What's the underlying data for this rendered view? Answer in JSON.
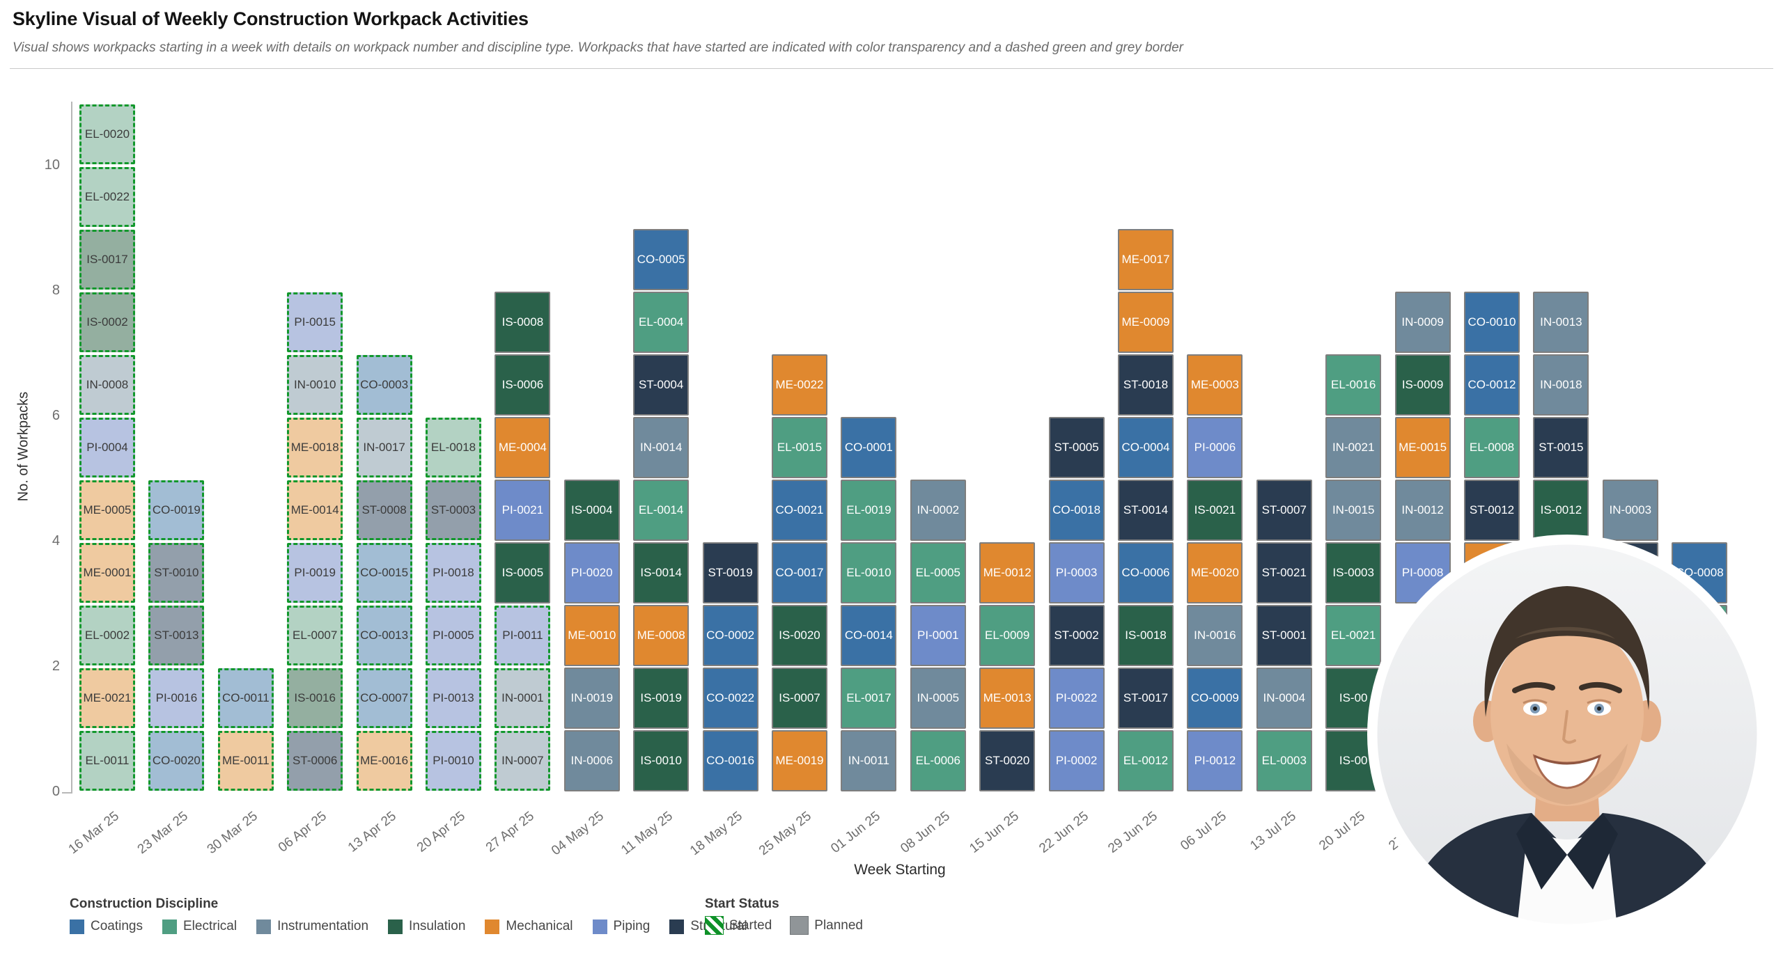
{
  "header": {
    "title": "Skyline Visual of Weekly Construction Workpack Activities",
    "subtitle": "Visual shows workpacks starting in a week with details on workpack number and discipline type. Workpacks that have started are indicated with color transparency and a dashed green and grey border"
  },
  "axes": {
    "y_title": "No. of Workpacks",
    "x_title": "Week Starting",
    "y_ticks": [
      0,
      2,
      4,
      6,
      8,
      10
    ]
  },
  "disciplines": {
    "CO": {
      "label": "Coatings",
      "solid": "#3a71a5",
      "light": "#a2bdd4"
    },
    "EL": {
      "label": "Electrical",
      "solid": "#4f9e82",
      "light": "#b3d2c3"
    },
    "IN": {
      "label": "Instrumentation",
      "solid": "#708a9c",
      "light": "#bfcbd2"
    },
    "IS": {
      "label": "Insulation",
      "solid": "#2a614a",
      "light": "#94afa0"
    },
    "ME": {
      "label": "Mechanical",
      "solid": "#e0882f",
      "light": "#efcaa0"
    },
    "PI": {
      "label": "Piping",
      "solid": "#6e8bc9",
      "light": "#b7c3e1"
    },
    "ST": {
      "label": "Structural",
      "solid": "#2a3c51",
      "light": "#939fab"
    }
  },
  "legend": {
    "discipline_header": "Construction Discipline",
    "order": [
      "CO",
      "EL",
      "IN",
      "IS",
      "ME",
      "PI",
      "ST"
    ],
    "status_header": "Start Status",
    "started_label": "Started",
    "planned_label": "Planned",
    "started_hatch_color": "#0e9128",
    "planned_swatch_color": "#909598"
  },
  "colors": {
    "started_border": "#12982c",
    "planned_border": "#7e7e7e",
    "block_text_planned": "#ffffff",
    "block_text_started": "#3b3b3b"
  },
  "chart_data": {
    "type": "bar",
    "subtype": "stacked-skyline-blocks",
    "title": "Skyline Visual of Weekly Construction Workpack Activities",
    "xlabel": "Week Starting",
    "ylabel": "No. of Workpacks",
    "ylim": [
      0,
      11
    ],
    "grid": false,
    "legend_position": "bottom",
    "weeks": [
      {
        "label": "16 Mar 25",
        "blocks": [
          {
            "id": "EL-0011",
            "d": "EL",
            "s": true
          },
          {
            "id": "ME-0021",
            "d": "ME",
            "s": true
          },
          {
            "id": "EL-0002",
            "d": "EL",
            "s": true
          },
          {
            "id": "ME-0001",
            "d": "ME",
            "s": true
          },
          {
            "id": "ME-0005",
            "d": "ME",
            "s": true
          },
          {
            "id": "PI-0004",
            "d": "PI",
            "s": true
          },
          {
            "id": "IN-0008",
            "d": "IN",
            "s": true
          },
          {
            "id": "IS-0002",
            "d": "IS",
            "s": true
          },
          {
            "id": "IS-0017",
            "d": "IS",
            "s": true
          },
          {
            "id": "EL-0022",
            "d": "EL",
            "s": true
          },
          {
            "id": "EL-0020",
            "d": "EL",
            "s": true
          }
        ]
      },
      {
        "label": "23 Mar 25",
        "blocks": [
          {
            "id": "CO-0020",
            "d": "CO",
            "s": true
          },
          {
            "id": "PI-0016",
            "d": "PI",
            "s": true
          },
          {
            "id": "ST-0013",
            "d": "ST",
            "s": true
          },
          {
            "id": "ST-0010",
            "d": "ST",
            "s": true
          },
          {
            "id": "CO-0019",
            "d": "CO",
            "s": true
          }
        ]
      },
      {
        "label": "30 Mar 25",
        "blocks": [
          {
            "id": "ME-0011",
            "d": "ME",
            "s": true
          },
          {
            "id": "CO-0011",
            "d": "CO",
            "s": true
          }
        ]
      },
      {
        "label": "06 Apr 25",
        "blocks": [
          {
            "id": "ST-0006",
            "d": "ST",
            "s": true
          },
          {
            "id": "IS-0016",
            "d": "IS",
            "s": true
          },
          {
            "id": "EL-0007",
            "d": "EL",
            "s": true
          },
          {
            "id": "PI-0019",
            "d": "PI",
            "s": true
          },
          {
            "id": "ME-0014",
            "d": "ME",
            "s": true
          },
          {
            "id": "ME-0018",
            "d": "ME",
            "s": true
          },
          {
            "id": "IN-0010",
            "d": "IN",
            "s": true
          },
          {
            "id": "PI-0015",
            "d": "PI",
            "s": true
          }
        ]
      },
      {
        "label": "13 Apr 25",
        "blocks": [
          {
            "id": "ME-0016",
            "d": "ME",
            "s": true
          },
          {
            "id": "CO-0007",
            "d": "CO",
            "s": true
          },
          {
            "id": "CO-0013",
            "d": "CO",
            "s": true
          },
          {
            "id": "CO-0015",
            "d": "CO",
            "s": true
          },
          {
            "id": "ST-0008",
            "d": "ST",
            "s": true
          },
          {
            "id": "IN-0017",
            "d": "IN",
            "s": true
          },
          {
            "id": "CO-0003",
            "d": "CO",
            "s": true
          }
        ]
      },
      {
        "label": "20 Apr 25",
        "blocks": [
          {
            "id": "PI-0010",
            "d": "PI",
            "s": true
          },
          {
            "id": "PI-0013",
            "d": "PI",
            "s": true
          },
          {
            "id": "PI-0005",
            "d": "PI",
            "s": true
          },
          {
            "id": "PI-0018",
            "d": "PI",
            "s": true
          },
          {
            "id": "ST-0003",
            "d": "ST",
            "s": true
          },
          {
            "id": "EL-0018",
            "d": "EL",
            "s": true
          }
        ]
      },
      {
        "label": "27 Apr 25",
        "blocks": [
          {
            "id": "IN-0007",
            "d": "IN",
            "s": true
          },
          {
            "id": "IN-0001",
            "d": "IN",
            "s": true
          },
          {
            "id": "PI-0011",
            "d": "PI",
            "s": true
          },
          {
            "id": "IS-0005",
            "d": "IS",
            "s": false
          },
          {
            "id": "PI-0021",
            "d": "PI",
            "s": false
          },
          {
            "id": "ME-0004",
            "d": "ME",
            "s": false
          },
          {
            "id": "IS-0006",
            "d": "IS",
            "s": false
          },
          {
            "id": "IS-0008",
            "d": "IS",
            "s": false
          }
        ]
      },
      {
        "label": "04 May 25",
        "blocks": [
          {
            "id": "IN-0006",
            "d": "IN",
            "s": false
          },
          {
            "id": "IN-0019",
            "d": "IN",
            "s": false
          },
          {
            "id": "ME-0010",
            "d": "ME",
            "s": false
          },
          {
            "id": "PI-0020",
            "d": "PI",
            "s": false
          },
          {
            "id": "IS-0004",
            "d": "IS",
            "s": false
          }
        ]
      },
      {
        "label": "11 May 25",
        "blocks": [
          {
            "id": "IS-0010",
            "d": "IS",
            "s": false
          },
          {
            "id": "IS-0019",
            "d": "IS",
            "s": false
          },
          {
            "id": "ME-0008",
            "d": "ME",
            "s": false
          },
          {
            "id": "IS-0014",
            "d": "IS",
            "s": false
          },
          {
            "id": "EL-0014",
            "d": "EL",
            "s": false
          },
          {
            "id": "IN-0014",
            "d": "IN",
            "s": false
          },
          {
            "id": "ST-0004",
            "d": "ST",
            "s": false
          },
          {
            "id": "EL-0004",
            "d": "EL",
            "s": false
          },
          {
            "id": "CO-0005",
            "d": "CO",
            "s": false
          }
        ]
      },
      {
        "label": "18 May 25",
        "blocks": [
          {
            "id": "CO-0016",
            "d": "CO",
            "s": false
          },
          {
            "id": "CO-0022",
            "d": "CO",
            "s": false
          },
          {
            "id": "CO-0002",
            "d": "CO",
            "s": false
          },
          {
            "id": "ST-0019",
            "d": "ST",
            "s": false
          }
        ]
      },
      {
        "label": "25 May 25",
        "blocks": [
          {
            "id": "ME-0019",
            "d": "ME",
            "s": false
          },
          {
            "id": "IS-0007",
            "d": "IS",
            "s": false
          },
          {
            "id": "IS-0020",
            "d": "IS",
            "s": false
          },
          {
            "id": "CO-0017",
            "d": "CO",
            "s": false
          },
          {
            "id": "CO-0021",
            "d": "CO",
            "s": false
          },
          {
            "id": "EL-0015",
            "d": "EL",
            "s": false
          },
          {
            "id": "ME-0022",
            "d": "ME",
            "s": false
          }
        ]
      },
      {
        "label": "01 Jun 25",
        "blocks": [
          {
            "id": "IN-0011",
            "d": "IN",
            "s": false
          },
          {
            "id": "EL-0017",
            "d": "EL",
            "s": false
          },
          {
            "id": "CO-0014",
            "d": "CO",
            "s": false
          },
          {
            "id": "EL-0010",
            "d": "EL",
            "s": false
          },
          {
            "id": "EL-0019",
            "d": "EL",
            "s": false
          },
          {
            "id": "CO-0001",
            "d": "CO",
            "s": false
          }
        ]
      },
      {
        "label": "08 Jun 25",
        "blocks": [
          {
            "id": "EL-0006",
            "d": "EL",
            "s": false
          },
          {
            "id": "IN-0005",
            "d": "IN",
            "s": false
          },
          {
            "id": "PI-0001",
            "d": "PI",
            "s": false
          },
          {
            "id": "EL-0005",
            "d": "EL",
            "s": false
          },
          {
            "id": "IN-0002",
            "d": "IN",
            "s": false
          }
        ]
      },
      {
        "label": "15 Jun 25",
        "blocks": [
          {
            "id": "ST-0020",
            "d": "ST",
            "s": false
          },
          {
            "id": "ME-0013",
            "d": "ME",
            "s": false
          },
          {
            "id": "EL-0009",
            "d": "EL",
            "s": false
          },
          {
            "id": "ME-0012",
            "d": "ME",
            "s": false
          }
        ]
      },
      {
        "label": "22 Jun 25",
        "blocks": [
          {
            "id": "PI-0002",
            "d": "PI",
            "s": false
          },
          {
            "id": "PI-0022",
            "d": "PI",
            "s": false
          },
          {
            "id": "ST-0002",
            "d": "ST",
            "s": false
          },
          {
            "id": "PI-0003",
            "d": "PI",
            "s": false
          },
          {
            "id": "CO-0018",
            "d": "CO",
            "s": false
          },
          {
            "id": "ST-0005",
            "d": "ST",
            "s": false
          }
        ]
      },
      {
        "label": "29 Jun 25",
        "blocks": [
          {
            "id": "EL-0012",
            "d": "EL",
            "s": false
          },
          {
            "id": "ST-0017",
            "d": "ST",
            "s": false
          },
          {
            "id": "IS-0018",
            "d": "IS",
            "s": false
          },
          {
            "id": "CO-0006",
            "d": "CO",
            "s": false
          },
          {
            "id": "ST-0014",
            "d": "ST",
            "s": false
          },
          {
            "id": "CO-0004",
            "d": "CO",
            "s": false
          },
          {
            "id": "ST-0018",
            "d": "ST",
            "s": false
          },
          {
            "id": "ME-0009",
            "d": "ME",
            "s": false
          },
          {
            "id": "ME-0017",
            "d": "ME",
            "s": false
          }
        ]
      },
      {
        "label": "06 Jul 25",
        "blocks": [
          {
            "id": "PI-0012",
            "d": "PI",
            "s": false
          },
          {
            "id": "CO-0009",
            "d": "CO",
            "s": false
          },
          {
            "id": "IN-0016",
            "d": "IN",
            "s": false
          },
          {
            "id": "ME-0020",
            "d": "ME",
            "s": false
          },
          {
            "id": "IS-0021",
            "d": "IS",
            "s": false
          },
          {
            "id": "PI-0006",
            "d": "PI",
            "s": false
          },
          {
            "id": "ME-0003",
            "d": "ME",
            "s": false
          }
        ]
      },
      {
        "label": "13 Jul 25",
        "blocks": [
          {
            "id": "EL-0003",
            "d": "EL",
            "s": false
          },
          {
            "id": "IN-0004",
            "d": "IN",
            "s": false
          },
          {
            "id": "ST-0001",
            "d": "ST",
            "s": false
          },
          {
            "id": "ST-0021",
            "d": "ST",
            "s": false
          },
          {
            "id": "ST-0007",
            "d": "ST",
            "s": false
          }
        ]
      },
      {
        "label": "20 Jul 25",
        "blocks": [
          {
            "id": "IS-00",
            "d": "IS",
            "s": false
          },
          {
            "id": "IS-00",
            "d": "IS",
            "s": false
          },
          {
            "id": "EL-0021",
            "d": "EL",
            "s": false
          },
          {
            "id": "IS-0003",
            "d": "IS",
            "s": false
          },
          {
            "id": "IN-0015",
            "d": "IN",
            "s": false
          },
          {
            "id": "IN-0021",
            "d": "IN",
            "s": false
          },
          {
            "id": "EL-0016",
            "d": "EL",
            "s": false
          }
        ]
      },
      {
        "label": "27 Jul 25",
        "blocks": [
          {
            "id": "PI-0008",
            "d": "PI",
            "s": false,
            "lv": 4
          },
          {
            "id": "IN-0012",
            "d": "IN",
            "s": false
          },
          {
            "id": "ME-0015",
            "d": "ME",
            "s": false
          },
          {
            "id": "IS-0009",
            "d": "IS",
            "s": false
          },
          {
            "id": "IN-0009",
            "d": "IN",
            "s": false
          }
        ]
      },
      {
        "label": "",
        "blocks": [
          {
            "id": "",
            "d": "ME",
            "s": false,
            "lv": 4
          },
          {
            "id": "ST-0012",
            "d": "ST",
            "s": false
          },
          {
            "id": "EL-0008",
            "d": "EL",
            "s": false
          },
          {
            "id": "CO-0012",
            "d": "CO",
            "s": false
          },
          {
            "id": "CO-0010",
            "d": "CO",
            "s": false
          }
        ]
      },
      {
        "label": "",
        "blocks": [
          {
            "id": "",
            "d": "ST",
            "s": false,
            "lv": 4
          },
          {
            "id": "IS-0012",
            "d": "IS",
            "s": false
          },
          {
            "id": "ST-0015",
            "d": "ST",
            "s": false
          },
          {
            "id": "IN-0018",
            "d": "IN",
            "s": false
          },
          {
            "id": "IN-0013",
            "d": "IN",
            "s": false
          }
        ]
      },
      {
        "label": "",
        "blocks": [
          {
            "id": "",
            "d": "ST",
            "s": false,
            "lv": 4
          },
          {
            "id": "IN-0003",
            "d": "IN",
            "s": false
          }
        ]
      },
      {
        "label": "",
        "blocks": [
          {
            "id": "",
            "d": "EL",
            "s": false,
            "lv": 3
          },
          {
            "id": "CO-0008",
            "d": "CO",
            "s": false
          }
        ]
      }
    ]
  }
}
